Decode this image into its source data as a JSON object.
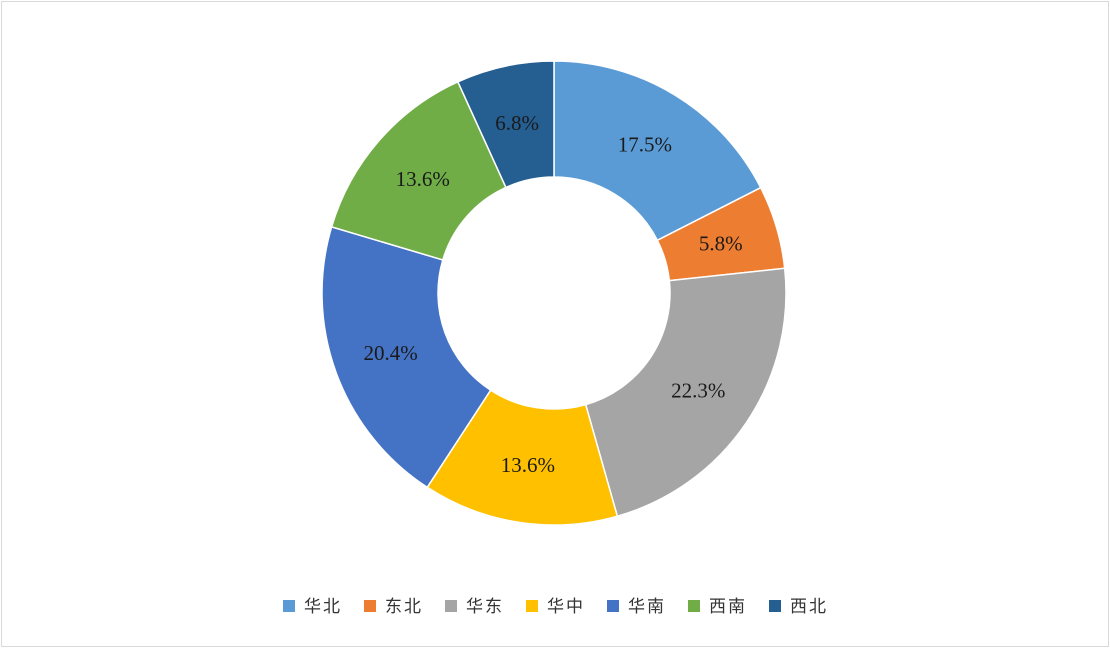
{
  "chart_data": {
    "type": "pie",
    "donut": true,
    "title": "",
    "legend_position": "bottom",
    "series": [
      {
        "name": "华北",
        "value": 17.5,
        "label": "17.5%",
        "color": "#5b9bd5"
      },
      {
        "name": "东北",
        "value": 5.8,
        "label": "5.8%",
        "color": "#ed7d31"
      },
      {
        "name": "华东",
        "value": 22.3,
        "label": "22.3%",
        "color": "#a5a5a5"
      },
      {
        "name": "华中",
        "value": 13.6,
        "label": "13.6%",
        "color": "#ffc000"
      },
      {
        "name": "华南",
        "value": 20.4,
        "label": "20.4%",
        "color": "#4472c4"
      },
      {
        "name": "西南",
        "value": 13.6,
        "label": "13.6%",
        "color": "#70ad47"
      },
      {
        "name": "西北",
        "value": 6.8,
        "label": "6.8%",
        "color": "#255e91"
      }
    ]
  }
}
